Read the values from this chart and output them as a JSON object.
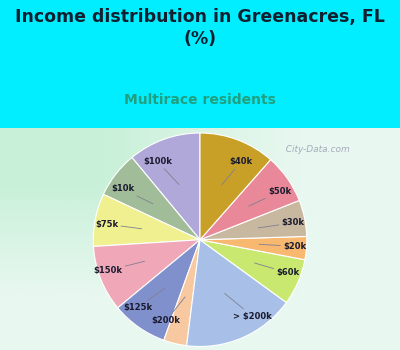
{
  "title": "Income distribution in Greenacres, FL\n(%)",
  "subtitle": "Multirace residents",
  "labels": [
    "$100k",
    "$10k",
    "$75k",
    "$150k",
    "$125k",
    "$200k",
    "> $200k",
    "$60k",
    "$20k",
    "$30k",
    "$50k",
    "$40k"
  ],
  "sizes": [
    11.0,
    7.0,
    8.0,
    10.0,
    8.5,
    3.5,
    17.0,
    7.0,
    3.5,
    5.5,
    7.5,
    11.5
  ],
  "colors": [
    "#b0a8d8",
    "#a0bc98",
    "#f0f090",
    "#f0a8b8",
    "#8090cc",
    "#f8c8a0",
    "#a8c0e8",
    "#c8e870",
    "#f8b870",
    "#c8b8a0",
    "#e88898",
    "#c8a028"
  ],
  "background_top": "#00eeff",
  "background_chart_tl": "#c8f0d8",
  "background_chart_br": "#e8f8f0",
  "title_color": "#102030",
  "subtitle_color": "#20a080",
  "title_fontsize": 12.5,
  "subtitle_fontsize": 10,
  "startangle": 90,
  "watermark": "  City-Data.com"
}
